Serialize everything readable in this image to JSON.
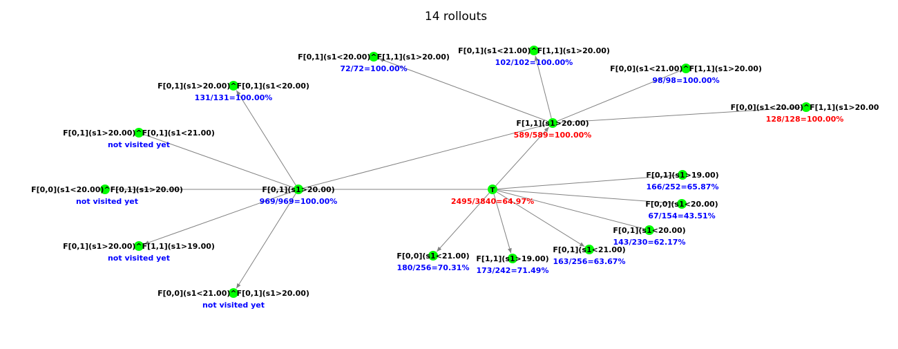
{
  "title": "14 rollouts",
  "colors": {
    "node": "#00ff00",
    "edge": "#808080",
    "stat_blue": "#0000ff",
    "stat_red": "#ff0000",
    "label": "#000000"
  },
  "nodes": [
    {
      "id": "root",
      "glyph": "T",
      "label": "",
      "stat": "2495/3840=64.97%",
      "stat_color": "red"
    },
    {
      "id": "n_f01_s1gt20",
      "glyph": "",
      "label": "F[0,1](s1>20.00)",
      "stat": "969/969=100.00%",
      "stat_color": "blue"
    },
    {
      "id": "n_f11_s1gt20",
      "glyph": "",
      "label": "F[1,1](s1>20.00)",
      "stat": "589/589=100.00%",
      "stat_color": "red"
    },
    {
      "id": "n_f00_s1lt21",
      "glyph": "",
      "label": "F[0,0](s1<21.00)",
      "stat": "180/256=70.31%",
      "stat_color": "blue"
    },
    {
      "id": "n_f11_s1gt19",
      "glyph": "",
      "label": "F[1,1](s1>19.00)",
      "stat": "173/242=71.49%",
      "stat_color": "blue"
    },
    {
      "id": "n_f01_s1lt21",
      "glyph": "",
      "label": "F[0,1](s1<21.00)",
      "stat": "163/256=63.67%",
      "stat_color": "blue"
    },
    {
      "id": "n_f01_s1lt20",
      "glyph": "",
      "label": "F[0,1](s1<20.00)",
      "stat": "143/230=62.17%",
      "stat_color": "blue"
    },
    {
      "id": "n_f00_s1lt20",
      "glyph": "",
      "label": "F[0,0](s1<20.00)",
      "stat": "67/154=43.51%",
      "stat_color": "blue"
    },
    {
      "id": "n_f01_s1gt19",
      "glyph": "",
      "label": "F[0,1](s1>19.00)",
      "stat": "166/252=65.87%",
      "stat_color": "blue"
    },
    {
      "id": "c_a",
      "glyph": "",
      "label": "F[0,1](s1>20.00)^F[0,1](s1<20.00)",
      "stat": "131/131=100.00%",
      "stat_color": "blue"
    },
    {
      "id": "c_b",
      "glyph": "",
      "label": "F[0,1](s1>20.00)^F[0,1](s1<21.00)",
      "stat": "not visited yet",
      "stat_color": "blue"
    },
    {
      "id": "c_c",
      "glyph": "",
      "label": "F[0,0](s1<20.00)^F[0,1](s1>20.00)",
      "stat": "not visited yet",
      "stat_color": "blue"
    },
    {
      "id": "c_d",
      "glyph": "",
      "label": "F[0,1](s1>20.00)^F[1,1](s1>19.00)",
      "stat": "not visited yet",
      "stat_color": "blue"
    },
    {
      "id": "c_e",
      "glyph": "",
      "label": "F[0,0](s1<21.00)^F[0,1](s1>20.00)",
      "stat": "not visited yet",
      "stat_color": "blue"
    },
    {
      "id": "d_a",
      "glyph": "",
      "label": "F[0,1](s1<20.00)^F[1,1](s1>20.00)",
      "stat": "72/72=100.00%",
      "stat_color": "blue"
    },
    {
      "id": "d_b",
      "glyph": "",
      "label": "F[0,1](s1<21.00)^F[1,1](s1>20.00)",
      "stat": "102/102=100.00%",
      "stat_color": "blue"
    },
    {
      "id": "d_c",
      "glyph": "",
      "label": "F[0,0](s1<21.00)^F[1,1](s1>20.00)",
      "stat": "98/98=100.00%",
      "stat_color": "blue"
    },
    {
      "id": "d_d",
      "glyph": "",
      "label": "F[0,0](s1<20.00)^F[1,1](s1>20.00",
      "stat": "128/128=100.00%",
      "stat_color": "red"
    }
  ],
  "edges": [
    {
      "from": "root",
      "to": "n_f01_s1gt20",
      "arrow": false
    },
    {
      "from": "root",
      "to": "n_f11_s1gt20",
      "arrow": true
    },
    {
      "from": "root",
      "to": "n_f00_s1lt21",
      "arrow": true
    },
    {
      "from": "root",
      "to": "n_f11_s1gt19",
      "arrow": true
    },
    {
      "from": "root",
      "to": "n_f01_s1lt21",
      "arrow": true
    },
    {
      "from": "root",
      "to": "n_f01_s1lt20",
      "arrow": false
    },
    {
      "from": "root",
      "to": "n_f00_s1lt20",
      "arrow": false
    },
    {
      "from": "root",
      "to": "n_f01_s1gt19",
      "arrow": false
    },
    {
      "from": "n_f01_s1gt20",
      "to": "n_f11_s1gt20",
      "arrow": false
    },
    {
      "from": "n_f01_s1gt20",
      "to": "c_a",
      "arrow": true
    },
    {
      "from": "n_f01_s1gt20",
      "to": "c_b",
      "arrow": false
    },
    {
      "from": "n_f01_s1gt20",
      "to": "c_c",
      "arrow": false
    },
    {
      "from": "n_f01_s1gt20",
      "to": "c_d",
      "arrow": true
    },
    {
      "from": "n_f01_s1gt20",
      "to": "c_e",
      "arrow": true
    },
    {
      "from": "n_f11_s1gt20",
      "to": "d_a",
      "arrow": true
    },
    {
      "from": "n_f11_s1gt20",
      "to": "d_b",
      "arrow": true
    },
    {
      "from": "n_f11_s1gt20",
      "to": "d_c",
      "arrow": false
    },
    {
      "from": "n_f11_s1gt20",
      "to": "d_d",
      "arrow": false
    }
  ]
}
